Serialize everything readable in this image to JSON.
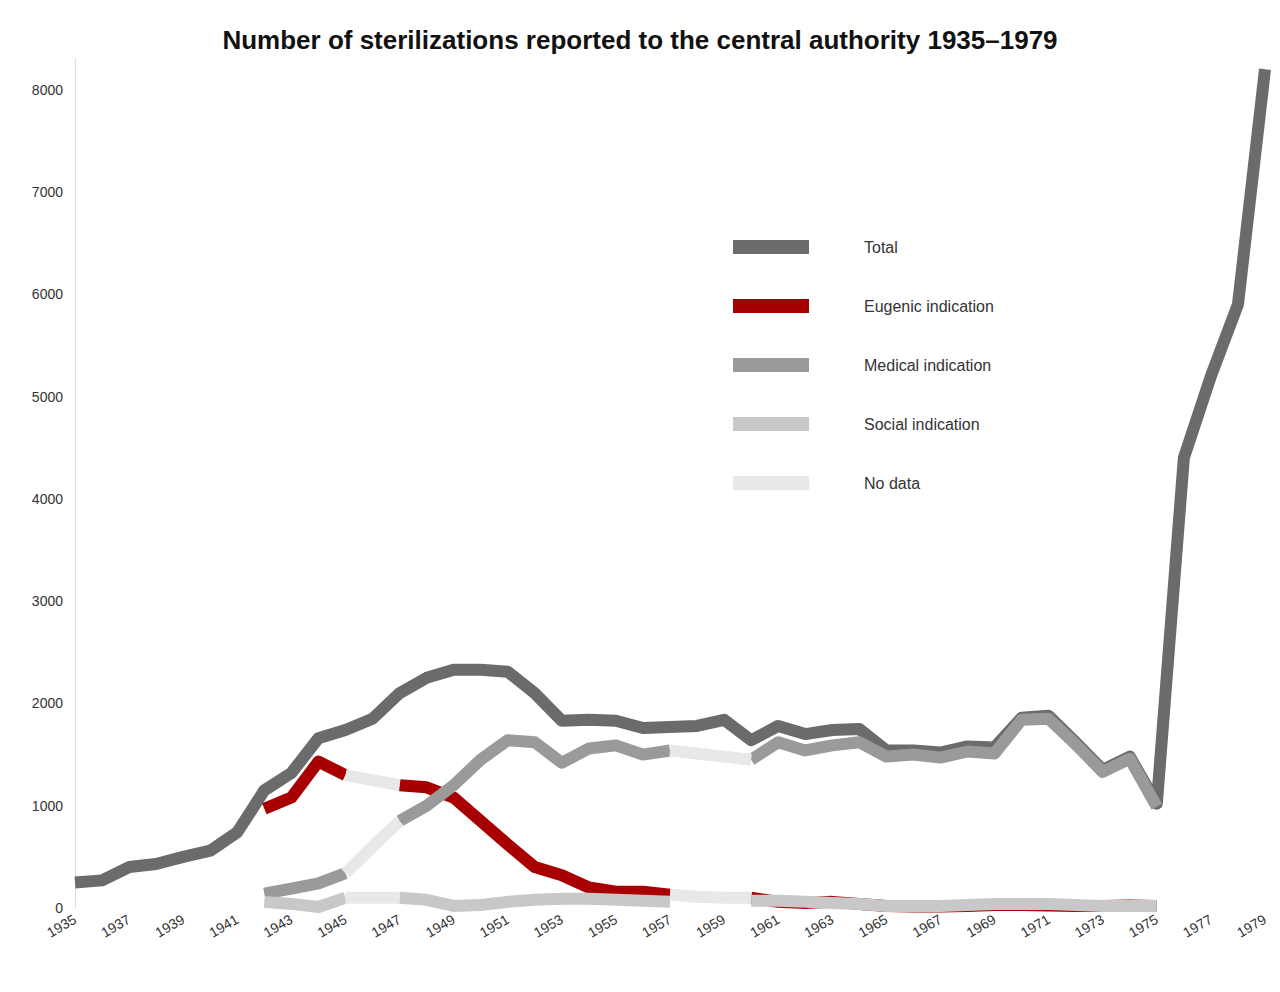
{
  "chart_data": {
    "type": "line",
    "title": "Number of sterilizations reported to the central authority 1935–1979",
    "x": [
      1935,
      1936,
      1937,
      1938,
      1939,
      1940,
      1941,
      1942,
      1943,
      1944,
      1945,
      1946,
      1947,
      1948,
      1949,
      1950,
      1951,
      1952,
      1953,
      1954,
      1955,
      1956,
      1957,
      1958,
      1959,
      1960,
      1961,
      1962,
      1963,
      1964,
      1965,
      1966,
      1967,
      1968,
      1969,
      1970,
      1971,
      1972,
      1973,
      1974,
      1975,
      1976,
      1977,
      1978,
      1979
    ],
    "xlim": [
      1935,
      1979
    ],
    "xticks": [
      1935,
      1937,
      1939,
      1941,
      1943,
      1945,
      1947,
      1949,
      1951,
      1953,
      1955,
      1957,
      1959,
      1961,
      1963,
      1965,
      1967,
      1969,
      1971,
      1973,
      1975,
      1977,
      1979
    ],
    "ylim": [
      0,
      8300
    ],
    "yticks": [
      0,
      1000,
      2000,
      3000,
      4000,
      5000,
      6000,
      7000,
      8000
    ],
    "grid": false,
    "legend": "right",
    "series": [
      {
        "name": "Total",
        "color": "#6b6b6b",
        "values": [
          250,
          270,
          400,
          430,
          500,
          560,
          740,
          1150,
          1320,
          1660,
          1740,
          1850,
          2100,
          2250,
          2330,
          2330,
          2310,
          2100,
          1830,
          1840,
          1830,
          1760,
          1770,
          1780,
          1840,
          1640,
          1780,
          1700,
          1740,
          1750,
          1540,
          1540,
          1520,
          1580,
          1570,
          1860,
          1880,
          1620,
          1350,
          1480,
          1020,
          4400,
          5200,
          5900,
          8200
        ]
      },
      {
        "name": "Eugenic indication",
        "color": "#a80000",
        "values": [
          null,
          null,
          null,
          null,
          null,
          null,
          null,
          970,
          1080,
          1430,
          1300,
          null,
          1200,
          1180,
          1080,
          850,
          620,
          400,
          320,
          200,
          160,
          160,
          130,
          null,
          null,
          100,
          60,
          50,
          60,
          40,
          20,
          15,
          15,
          20,
          30,
          30,
          25,
          20,
          20,
          25,
          20,
          null,
          null,
          null,
          null
        ]
      },
      {
        "name": "Medical indication",
        "color": "#9a9a9a",
        "values": [
          null,
          null,
          null,
          null,
          null,
          null,
          null,
          140,
          190,
          240,
          340,
          null,
          850,
          1000,
          1200,
          1450,
          1640,
          1620,
          1420,
          1560,
          1590,
          1500,
          1540,
          null,
          null,
          1450,
          1620,
          1540,
          1590,
          1620,
          1480,
          1500,
          1470,
          1530,
          1510,
          1840,
          1850,
          1600,
          1330,
          1460,
          990,
          null,
          null,
          null,
          null
        ]
      },
      {
        "name": "Social indication",
        "color": "#c8c8c8",
        "values": [
          null,
          null,
          null,
          null,
          null,
          null,
          null,
          60,
          40,
          10,
          100,
          null,
          100,
          80,
          20,
          30,
          60,
          80,
          90,
          90,
          80,
          70,
          60,
          null,
          null,
          70,
          70,
          60,
          50,
          40,
          20,
          20,
          20,
          30,
          40,
          40,
          40,
          30,
          20,
          20,
          20,
          null,
          null,
          null,
          null
        ]
      },
      {
        "name": "No data",
        "color": "#e8e8e8",
        "values": [
          null,
          null,
          null,
          null,
          null,
          null,
          null,
          null,
          null,
          null,
          1300,
          1250,
          1200,
          null,
          null,
          null,
          null,
          null,
          null,
          null,
          null,
          null,
          null,
          null,
          null,
          null,
          null,
          null,
          null,
          null,
          null,
          null,
          null,
          null,
          null,
          null,
          null,
          null,
          null,
          null,
          null,
          null,
          null,
          null,
          null
        ]
      },
      {
        "name": "No data",
        "color": "#e8e8e8",
        "values": [
          null,
          null,
          null,
          null,
          null,
          null,
          null,
          null,
          null,
          null,
          340,
          600,
          850,
          null,
          null,
          null,
          null,
          null,
          null,
          null,
          null,
          null,
          null,
          null,
          null,
          null,
          null,
          null,
          null,
          null,
          null,
          null,
          null,
          null,
          null,
          null,
          null,
          null,
          null,
          null,
          null,
          null,
          null,
          null,
          null
        ]
      },
      {
        "name": "No data",
        "color": "#e8e8e8",
        "values": [
          null,
          null,
          null,
          null,
          null,
          null,
          null,
          null,
          null,
          null,
          100,
          100,
          100,
          null,
          null,
          null,
          null,
          null,
          null,
          null,
          null,
          null,
          null,
          null,
          null,
          null,
          null,
          null,
          null,
          null,
          null,
          null,
          null,
          null,
          null,
          null,
          null,
          null,
          null,
          null,
          null,
          null,
          null,
          null,
          null
        ]
      },
      {
        "name": "No data",
        "color": "#e8e8e8",
        "values": [
          null,
          null,
          null,
          null,
          null,
          null,
          null,
          null,
          null,
          null,
          null,
          null,
          null,
          null,
          null,
          null,
          null,
          null,
          null,
          null,
          null,
          null,
          130,
          110,
          100,
          100,
          null,
          null,
          null,
          null,
          null,
          null,
          null,
          null,
          null,
          null,
          null,
          null,
          null,
          null,
          null,
          null,
          null,
          null,
          null
        ]
      },
      {
        "name": "No data",
        "color": "#e8e8e8",
        "values": [
          null,
          null,
          null,
          null,
          null,
          null,
          null,
          null,
          null,
          null,
          null,
          null,
          null,
          null,
          null,
          null,
          null,
          null,
          null,
          null,
          null,
          null,
          1540,
          1510,
          1480,
          1450,
          null,
          null,
          null,
          null,
          null,
          null,
          null,
          null,
          null,
          null,
          null,
          null,
          null,
          null,
          null,
          null,
          null,
          null,
          null
        ]
      }
    ]
  }
}
